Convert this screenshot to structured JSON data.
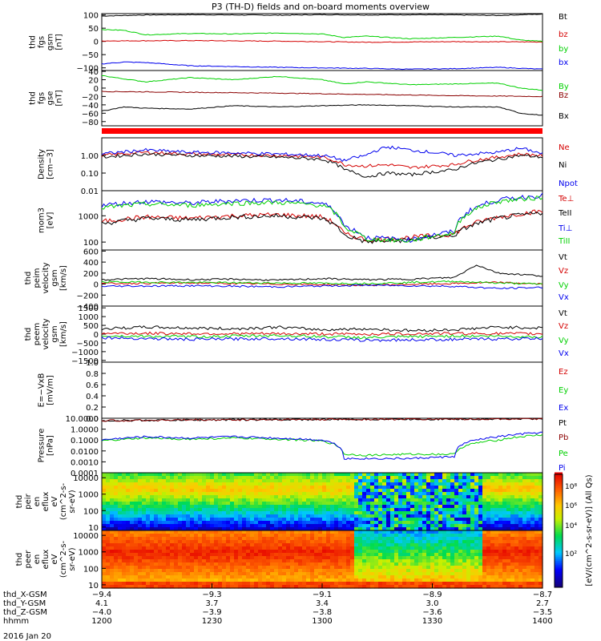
{
  "title": "P3 (TH-D) fields and on-board moments overview",
  "date_label": "2016 Jan 20",
  "colorbar_label": "[eV/(cm^2-s-sr-eV)] (All Qs)",
  "colorbar_ticks": [
    "10⁸",
    "10⁶",
    "10⁴",
    "10²"
  ],
  "colors": {
    "black": "#000000",
    "red": "#d40000",
    "green": "#00d000",
    "blue": "#0000ee",
    "darkred": "#8b0000",
    "brightred": "#ff0000"
  },
  "chart_data": [
    {
      "type": "line",
      "ylabel": [
        "thd",
        "fgs",
        "gsm",
        "[nT]"
      ],
      "ylim": [
        -110,
        105
      ],
      "ticks": [
        "100",
        "50",
        "0",
        "−50",
        "−100"
      ],
      "tick_values": [
        100,
        50,
        0,
        -50,
        -100
      ],
      "series": [
        {
          "name": "Bt",
          "color": "black",
          "x": [
            0,
            0.1,
            0.2,
            0.3,
            0.4,
            0.5,
            0.6,
            0.7,
            0.8,
            0.9,
            0.95,
            1
          ],
          "y": [
            96,
            100,
            101,
            100,
            99,
            101,
            100,
            101,
            100,
            98,
            101,
            103
          ]
        },
        {
          "name": "bz",
          "color": "red",
          "x": [
            0,
            0.2,
            0.4,
            0.6,
            0.8,
            1
          ],
          "y": [
            2,
            3,
            1,
            -3,
            -1,
            -2
          ]
        },
        {
          "name": "by",
          "color": "green",
          "x": [
            0,
            0.05,
            0.1,
            0.2,
            0.3,
            0.4,
            0.5,
            0.55,
            0.6,
            0.7,
            0.8,
            0.9,
            0.95,
            1
          ],
          "y": [
            45,
            42,
            25,
            30,
            28,
            32,
            28,
            15,
            20,
            10,
            15,
            20,
            5,
            0
          ]
        },
        {
          "name": "bx",
          "color": "blue",
          "x": [
            0,
            0.05,
            0.1,
            0.2,
            0.3,
            0.4,
            0.5,
            0.6,
            0.7,
            0.8,
            0.9,
            1
          ],
          "y": [
            -85,
            -78,
            -80,
            -92,
            -95,
            -98,
            -100,
            -102,
            -105,
            -103,
            -98,
            -105
          ]
        }
      ]
    },
    {
      "type": "line",
      "ylabel": [
        "thd",
        "fgs",
        "gse",
        "[nT]"
      ],
      "ylim": [
        -90,
        42
      ],
      "ticks": [
        "40",
        "20",
        "0",
        "−20",
        "−40",
        "−60",
        "−80"
      ],
      "tick_values": [
        40,
        20,
        0,
        -20,
        -40,
        -60,
        -80
      ],
      "series": [
        {
          "name": "By",
          "color": "green",
          "x": [
            0,
            0.05,
            0.1,
            0.2,
            0.3,
            0.4,
            0.5,
            0.55,
            0.6,
            0.7,
            0.8,
            0.9,
            0.95,
            1
          ],
          "y": [
            30,
            22,
            15,
            25,
            20,
            28,
            20,
            10,
            15,
            8,
            10,
            12,
            0,
            -5
          ]
        },
        {
          "name": "Bz",
          "color": "darkred",
          "x": [
            0,
            0.2,
            0.4,
            0.6,
            0.8,
            1
          ],
          "y": [
            -8,
            -10,
            -12,
            -15,
            -18,
            -20
          ]
        },
        {
          "name": "Bx",
          "color": "black",
          "x": [
            0,
            0.05,
            0.1,
            0.2,
            0.3,
            0.4,
            0.5,
            0.6,
            0.7,
            0.8,
            0.9,
            0.95,
            1
          ],
          "y": [
            -55,
            -45,
            -48,
            -50,
            -42,
            -45,
            -42,
            -40,
            -42,
            -45,
            -45,
            -60,
            -65
          ]
        }
      ]
    },
    {
      "type": "line",
      "ylabel": [
        "Density",
        "[cm−3]"
      ],
      "scale": "log",
      "ylim": [
        0.01,
        10
      ],
      "ticks": [
        "1.00",
        "0.10",
        "0.01"
      ],
      "tick_values": [
        1,
        0.1,
        0.01
      ],
      "series": [
        {
          "name": "Ne",
          "color": "red",
          "x": [
            0,
            0.1,
            0.2,
            0.3,
            0.4,
            0.5,
            0.55,
            0.6,
            0.65,
            0.7,
            0.8,
            0.9,
            0.95,
            1
          ],
          "y": [
            1.0,
            1.5,
            1.2,
            1.1,
            1.0,
            0.8,
            0.3,
            0.25,
            0.3,
            0.2,
            0.3,
            0.8,
            1.2,
            1.0
          ]
        },
        {
          "name": "Ni",
          "color": "black",
          "x": [
            0,
            0.1,
            0.2,
            0.3,
            0.4,
            0.5,
            0.55,
            0.6,
            0.65,
            0.7,
            0.8,
            0.9,
            0.95,
            1
          ],
          "y": [
            0.8,
            1.2,
            1.0,
            0.9,
            0.8,
            0.6,
            0.15,
            0.06,
            0.1,
            0.08,
            0.15,
            0.6,
            1.0,
            0.8
          ]
        },
        {
          "name": "Npot",
          "color": "blue",
          "x": [
            0,
            0.1,
            0.2,
            0.3,
            0.4,
            0.5,
            0.55,
            0.6,
            0.65,
            0.7,
            0.8,
            0.9,
            0.95,
            1
          ],
          "y": [
            1.2,
            2.0,
            1.5,
            1.4,
            1.2,
            1.0,
            0.5,
            1.0,
            3.0,
            2.0,
            1.0,
            1.5,
            2.5,
            1.2
          ]
        }
      ]
    },
    {
      "type": "line",
      "ylabel": [
        "mom3",
        "[eV]"
      ],
      "scale": "log",
      "ylim": [
        50,
        9000
      ],
      "ticks": [
        "1000",
        "100"
      ],
      "tick_values": [
        1000,
        100
      ],
      "series": [
        {
          "name": "Te⊥",
          "color": "red",
          "x": [
            0,
            0.1,
            0.2,
            0.3,
            0.4,
            0.5,
            0.55,
            0.6,
            0.7,
            0.8,
            0.9,
            1
          ],
          "y": [
            600,
            900,
            800,
            1000,
            1100,
            900,
            200,
            120,
            150,
            200,
            900,
            1500
          ]
        },
        {
          "name": "TeII",
          "color": "black",
          "x": [
            0,
            0.1,
            0.2,
            0.3,
            0.4,
            0.5,
            0.55,
            0.6,
            0.7,
            0.8,
            0.9,
            1
          ],
          "y": [
            500,
            800,
            700,
            900,
            1000,
            800,
            180,
            100,
            120,
            180,
            800,
            1300
          ]
        },
        {
          "name": "Ti⊥",
          "color": "blue",
          "x": [
            0,
            0.1,
            0.2,
            0.3,
            0.4,
            0.5,
            0.55,
            0.6,
            0.7,
            0.8,
            0.9,
            1
          ],
          "y": [
            2500,
            3500,
            3000,
            3800,
            4000,
            3000,
            400,
            150,
            120,
            250,
            4000,
            6000
          ]
        },
        {
          "name": "TiII",
          "color": "green",
          "x": [
            0,
            0.1,
            0.2,
            0.3,
            0.4,
            0.5,
            0.55,
            0.6,
            0.7,
            0.8,
            0.9,
            1
          ],
          "y": [
            2000,
            2800,
            2500,
            3000,
            3200,
            2500,
            350,
            130,
            110,
            220,
            3500,
            5000
          ]
        }
      ]
    },
    {
      "type": "line",
      "ylabel": [
        "thd",
        "peim",
        "velocity",
        "gsm",
        "[km/s]"
      ],
      "ylim": [
        -400,
        620
      ],
      "ticks": [
        "600",
        "400",
        "200",
        "0",
        "−200",
        "−400"
      ],
      "tick_values": [
        600,
        400,
        200,
        0,
        -200,
        -400
      ],
      "series": [
        {
          "name": "Vt",
          "color": "black",
          "x": [
            0,
            0.1,
            0.2,
            0.3,
            0.4,
            0.5,
            0.6,
            0.7,
            0.8,
            0.85,
            0.9,
            1
          ],
          "y": [
            80,
            100,
            80,
            90,
            70,
            100,
            80,
            90,
            120,
            350,
            200,
            150
          ]
        },
        {
          "name": "Vz",
          "color": "red",
          "x": [
            0,
            0.2,
            0.4,
            0.6,
            0.8,
            0.9,
            1
          ],
          "y": [
            10,
            20,
            0,
            -20,
            10,
            30,
            0
          ]
        },
        {
          "name": "Vy",
          "color": "green",
          "x": [
            0,
            0.2,
            0.4,
            0.6,
            0.8,
            0.9,
            1
          ],
          "y": [
            40,
            30,
            20,
            10,
            50,
            20,
            0
          ]
        },
        {
          "name": "Vx",
          "color": "blue",
          "x": [
            0,
            0.2,
            0.4,
            0.6,
            0.8,
            0.9,
            1
          ],
          "y": [
            -40,
            -30,
            -50,
            -20,
            -40,
            -80,
            -60
          ]
        }
      ]
    },
    {
      "type": "line",
      "ylabel": [
        "thd",
        "peem",
        "velocity",
        "gsm",
        "[km/s]"
      ],
      "ylim": [
        -1600,
        1600
      ],
      "ticks": [
        "1500",
        "1000",
        "500",
        "0",
        "−500",
        "−1000",
        "−1500"
      ],
      "tick_values": [
        1500,
        1000,
        500,
        0,
        -500,
        -1000,
        -1500
      ],
      "series": [
        {
          "name": "Vt",
          "color": "black",
          "x": [
            0,
            0.1,
            0.2,
            0.3,
            0.4,
            0.5,
            0.6,
            0.7,
            0.8,
            0.9,
            1
          ],
          "y": [
            300,
            400,
            350,
            300,
            400,
            250,
            300,
            200,
            250,
            400,
            350
          ]
        },
        {
          "name": "Vz",
          "color": "red",
          "x": [
            0,
            0.2,
            0.4,
            0.6,
            0.8,
            1
          ],
          "y": [
            50,
            30,
            20,
            0,
            40,
            20
          ]
        },
        {
          "name": "Vy",
          "color": "green",
          "x": [
            0,
            0.2,
            0.4,
            0.6,
            0.8,
            1
          ],
          "y": [
            -100,
            -150,
            -80,
            -200,
            -100,
            -150
          ]
        },
        {
          "name": "Vx",
          "color": "blue",
          "x": [
            0,
            0.2,
            0.4,
            0.6,
            0.8,
            1
          ],
          "y": [
            -200,
            -300,
            -250,
            -350,
            -300,
            -250
          ]
        }
      ]
    },
    {
      "type": "line",
      "ylabel": [
        "E=−VxB",
        "[mV/m]"
      ],
      "ylim": [
        0,
        1
      ],
      "ticks": [
        "1.0",
        "0.8",
        "0.6",
        "0.4",
        "0.2",
        "0.0"
      ],
      "tick_values": [
        1,
        0.8,
        0.6,
        0.4,
        0.2,
        0
      ],
      "legend": [
        {
          "name": "Ez",
          "color": "red"
        },
        {
          "name": "Ey",
          "color": "green"
        },
        {
          "name": "Ex",
          "color": "blue"
        }
      ],
      "series": []
    },
    {
      "type": "line",
      "ylabel": [
        "Pressure",
        "[nPa]"
      ],
      "scale": "log",
      "ylim": [
        0.0001,
        10
      ],
      "ticks": [
        "10.0000",
        "1.0000",
        "0.1000",
        "0.0100",
        "0.0010",
        "0.0001"
      ],
      "tick_values": [
        10,
        1,
        0.1,
        0.01,
        0.001,
        0.0001
      ],
      "series": [
        {
          "name": "Pt",
          "color": "black",
          "x": [
            0,
            0.2,
            0.4,
            0.6,
            0.8,
            1
          ],
          "y": [
            6,
            7,
            7.5,
            8,
            8.5,
            9
          ]
        },
        {
          "name": "Pb",
          "color": "darkred",
          "x": [
            0,
            0.2,
            0.4,
            0.6,
            0.8,
            1
          ],
          "y": [
            6,
            7,
            7.5,
            8,
            8.5,
            9
          ]
        },
        {
          "name": "Pe",
          "color": "green",
          "x": [
            0,
            0.1,
            0.2,
            0.3,
            0.4,
            0.5,
            0.55,
            0.6,
            0.7,
            0.8,
            0.9,
            1
          ],
          "y": [
            0.08,
            0.15,
            0.12,
            0.15,
            0.12,
            0.08,
            0.005,
            0.004,
            0.005,
            0.005,
            0.1,
            0.3
          ]
        },
        {
          "name": "Pi",
          "color": "blue",
          "x": [
            0,
            0.1,
            0.2,
            0.3,
            0.4,
            0.5,
            0.55,
            0.6,
            0.7,
            0.8,
            0.9,
            1
          ],
          "y": [
            0.1,
            0.2,
            0.15,
            0.2,
            0.15,
            0.1,
            0.002,
            0.002,
            0.002,
            0.003,
            0.2,
            0.5
          ]
        }
      ]
    },
    {
      "type": "heatmap",
      "ylabel": [
        "thd",
        "peir",
        "en",
        "eflux",
        "eV",
        "(cm^2-s-",
        "sr-eV)"
      ],
      "ticks": [
        "10000",
        "1000",
        "100",
        "10"
      ]
    },
    {
      "type": "heatmap",
      "ylabel": [
        "thd",
        "peer",
        "en",
        "eflux",
        "eV",
        "(cm^2-s-",
        "sr-eV)"
      ],
      "ticks": [
        "10000",
        "1000",
        "100",
        "10"
      ]
    }
  ],
  "x_axis": {
    "columns": [
      [
        "−9.4",
        "4.1",
        "−4.0",
        "1200"
      ],
      [
        "−9.3",
        "3.7",
        "−3.9",
        "1230"
      ],
      [
        "−9.1",
        "3.4",
        "−3.8",
        "1300"
      ],
      [
        "−8.9",
        "3.0",
        "−3.6",
        "1330"
      ],
      [
        "−8.7",
        "2.7",
        "−3.5",
        "1400"
      ]
    ],
    "row_labels": [
      "thd_X-GSM",
      "thd_Y-GSM",
      "thd_Z-GSM",
      "hhmm"
    ]
  }
}
